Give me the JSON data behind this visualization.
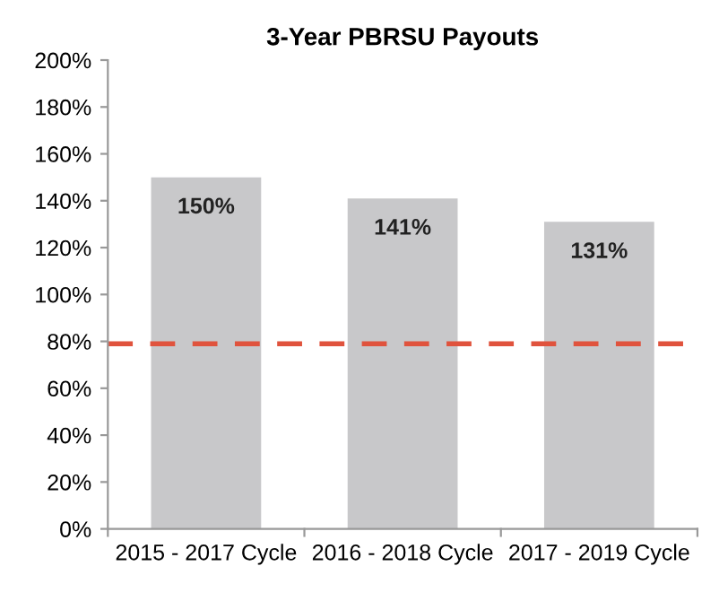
{
  "chart_data": {
    "type": "bar",
    "title": "3-Year PBRSU Payouts",
    "categories": [
      "2015 - 2017 Cycle",
      "2016 - 2018 Cycle",
      "2017 - 2019 Cycle"
    ],
    "values": [
      150,
      141,
      131
    ],
    "color": "#c8c8ca",
    "value_labels": [
      "150%",
      "141%",
      "131%"
    ],
    "ylim": [
      0,
      200
    ],
    "yticks": [
      {
        "value": 0,
        "label": "0%"
      },
      {
        "value": 20,
        "label": "20%"
      },
      {
        "value": 40,
        "label": "40%"
      },
      {
        "value": 60,
        "label": "60%"
      },
      {
        "value": 80,
        "label": "80%"
      },
      {
        "value": 100,
        "label": "100%"
      },
      {
        "value": 120,
        "label": "120%"
      },
      {
        "value": 140,
        "label": "140%"
      },
      {
        "value": 160,
        "label": "160%"
      },
      {
        "value": 180,
        "label": "180%"
      },
      {
        "value": 200,
        "label": "200%"
      }
    ],
    "ref_lines": [
      {
        "axis": "y",
        "value": 79,
        "label": null,
        "color": "#e0533d",
        "line_style": "dashed"
      }
    ],
    "grid": false,
    "legend": false
  }
}
